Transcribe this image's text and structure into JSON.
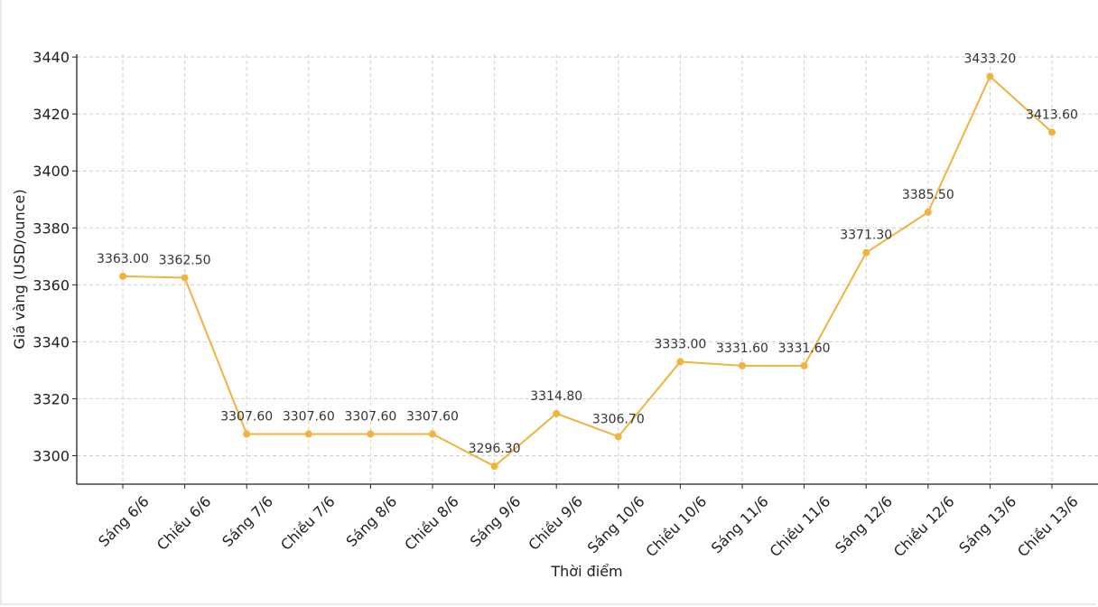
{
  "chart_data": {
    "type": "line",
    "title": "",
    "xlabel": "Thời điểm",
    "ylabel": "Giá vàng (USD/ounce)",
    "ylim": [
      3290,
      3441
    ],
    "yticks": [
      3300,
      3320,
      3340,
      3360,
      3380,
      3400,
      3420,
      3440
    ],
    "grid": true,
    "color": "#f0b33e",
    "categories": [
      "Sáng 6/6",
      "Chiều 6/6",
      "Sáng 7/6",
      "Chiều 7/6",
      "Sáng 8/6",
      "Chiều 8/6",
      "Sáng 9/6",
      "Chiều 9/6",
      "Sáng 10/6",
      "Chiều 10/6",
      "Sáng 11/6",
      "Chiều 11/6",
      "Sáng 12/6",
      "Chiều 12/6",
      "Sáng 13/6",
      "Chiều 13/6"
    ],
    "values": [
      3363.0,
      3362.5,
      3307.6,
      3307.6,
      3307.6,
      3307.6,
      3296.3,
      3314.8,
      3306.7,
      3333.0,
      3331.6,
      3331.6,
      3371.3,
      3385.5,
      3433.2,
      3413.6
    ],
    "data_labels": [
      "3363.00",
      "3362.50",
      "3307.60",
      "3307.60",
      "3307.60",
      "3307.60",
      "3296.30",
      "3314.80",
      "3306.70",
      "3333.00",
      "3331.60",
      "3331.60",
      "3371.30",
      "3385.50",
      "3433.20",
      "3413.60"
    ]
  }
}
